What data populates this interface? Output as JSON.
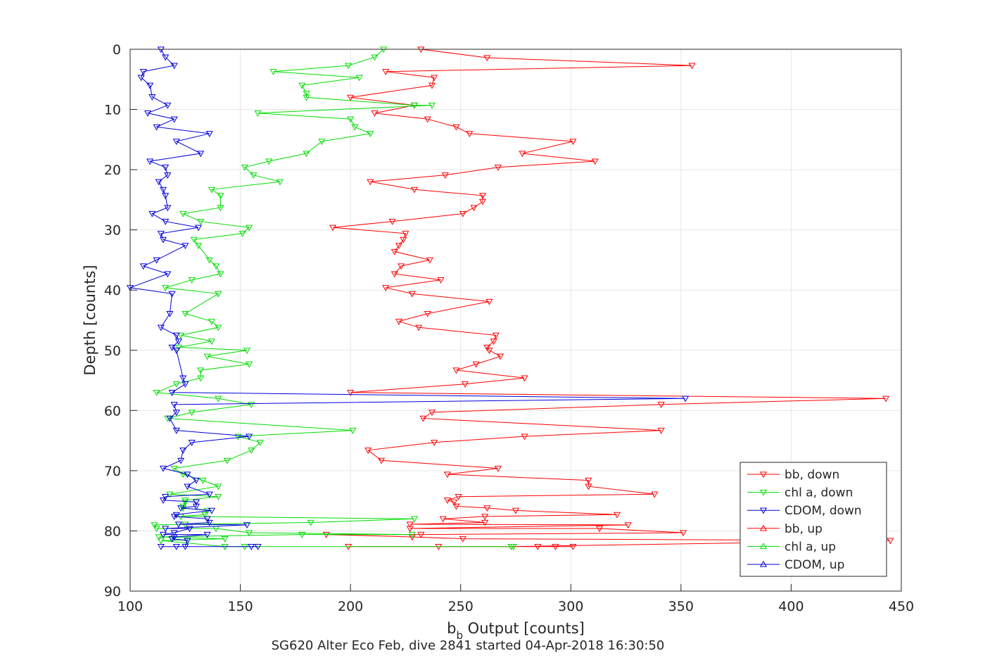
{
  "chart_data": {
    "type": "line",
    "title": "",
    "xlabel_main": "b",
    "xlabel_sub": "b",
    "xlabel_rest": " Output [counts]",
    "ylabel": "Depth [counts]",
    "caption": "SG620 Alter Eco Feb, dive 2841 started 04-Apr-2018 16:30:50",
    "xlim": [
      100,
      450
    ],
    "ylim": [
      0,
      90
    ],
    "y_reversed": true,
    "grid": true,
    "legend_position": "bottom-right",
    "xticks": [
      "100",
      "150",
      "200",
      "250",
      "300",
      "350",
      "400",
      "450"
    ],
    "yticks": [
      "0",
      "10",
      "20",
      "30",
      "40",
      "50",
      "60",
      "70",
      "80",
      "90"
    ],
    "series": [
      {
        "name": "bb, down",
        "color": "#ff0000",
        "marker": "down",
        "points": [
          [
            232,
            0
          ],
          [
            262,
            1.4
          ],
          [
            355,
            2.7
          ],
          [
            216,
            3.7
          ],
          [
            238,
            4.7
          ],
          [
            237,
            6
          ],
          [
            200,
            8
          ],
          [
            229,
            9.3
          ],
          [
            211,
            10.6
          ],
          [
            235,
            11.6
          ],
          [
            248,
            12.9
          ],
          [
            254,
            14
          ],
          [
            301,
            15.3
          ],
          [
            278,
            17.3
          ],
          [
            311,
            18.6
          ],
          [
            267,
            19.6
          ],
          [
            243,
            20.9
          ],
          [
            209,
            22
          ],
          [
            229,
            23.3
          ],
          [
            260,
            24.3
          ],
          [
            260,
            25.3
          ],
          [
            256,
            26.3
          ],
          [
            251,
            27.3
          ],
          [
            219,
            28.6
          ],
          [
            192,
            29.6
          ],
          [
            225,
            30.6
          ],
          [
            224,
            31.6
          ],
          [
            222,
            32.6
          ],
          [
            220,
            33.6
          ],
          [
            236,
            35
          ],
          [
            223,
            36
          ],
          [
            220,
            37.3
          ],
          [
            241,
            38.3
          ],
          [
            216,
            39.6
          ],
          [
            228,
            40.6
          ],
          [
            263,
            41.9
          ],
          [
            235,
            43.9
          ],
          [
            222,
            45.2
          ],
          [
            231,
            46.2
          ],
          [
            266,
            47.5
          ],
          [
            265,
            48.5
          ],
          [
            262,
            49.5
          ],
          [
            263,
            50
          ],
          [
            268,
            51
          ],
          [
            257,
            52.3
          ],
          [
            248,
            53.3
          ],
          [
            279,
            54.6
          ],
          [
            252,
            55.6
          ],
          [
            200,
            57
          ],
          [
            443,
            58
          ],
          [
            341,
            59
          ],
          [
            237,
            60.3
          ],
          [
            233,
            61.3
          ],
          [
            341,
            63.3
          ],
          [
            279,
            64.3
          ],
          [
            238,
            65.3
          ],
          [
            208,
            66.6
          ],
          [
            214,
            68.3
          ],
          [
            267,
            69.6
          ],
          [
            244,
            70.6
          ],
          [
            308,
            71.6
          ],
          [
            308,
            72.6
          ],
          [
            338,
            73.9
          ],
          [
            249,
            74.3
          ],
          [
            244,
            74.9
          ],
          [
            247,
            75.2
          ],
          [
            248,
            75.9
          ],
          [
            262,
            76.2
          ],
          [
            275,
            76.6
          ],
          [
            321,
            77.3
          ],
          [
            261,
            77.6
          ],
          [
            242,
            78
          ],
          [
            261,
            78.6
          ],
          [
            227,
            78.9
          ],
          [
            326,
            79
          ],
          [
            227,
            79.6
          ],
          [
            313,
            79.6
          ],
          [
            351,
            80.3
          ],
          [
            232,
            80.6
          ],
          [
            189,
            80.6
          ],
          [
            228,
            81
          ],
          [
            251,
            81.3
          ],
          [
            445,
            81.6
          ],
          [
            273,
            82.6
          ],
          [
            199,
            82.6
          ],
          [
            240,
            82.6
          ],
          [
            285,
            82.6
          ],
          [
            301,
            82.6
          ],
          [
            293,
            82.6
          ]
        ]
      },
      {
        "name": "chl a, down",
        "color": "#00dd00",
        "marker": "down",
        "points": [
          [
            215,
            0
          ],
          [
            211,
            1.3
          ],
          [
            199,
            2.7
          ],
          [
            165,
            3.7
          ],
          [
            204,
            4.7
          ],
          [
            178,
            6
          ],
          [
            180,
            7.3
          ],
          [
            180,
            8
          ],
          [
            229,
            9.3
          ],
          [
            237,
            9.3
          ],
          [
            158,
            10.6
          ],
          [
            200,
            11.6
          ],
          [
            202,
            12.9
          ],
          [
            209,
            14
          ],
          [
            187,
            15.3
          ],
          [
            180,
            17.3
          ],
          [
            163,
            18.6
          ],
          [
            152,
            19.6
          ],
          [
            156,
            20.9
          ],
          [
            168,
            22
          ],
          [
            137,
            23.3
          ],
          [
            141,
            24.3
          ],
          [
            141,
            26.3
          ],
          [
            124,
            27.3
          ],
          [
            132,
            28.6
          ],
          [
            154,
            29.6
          ],
          [
            151,
            30.6
          ],
          [
            129,
            31.6
          ],
          [
            131,
            32.6
          ],
          [
            136,
            35
          ],
          [
            139,
            36
          ],
          [
            141,
            37.3
          ],
          [
            128,
            38.3
          ],
          [
            116,
            39.6
          ],
          [
            140,
            40.6
          ],
          [
            125,
            43.9
          ],
          [
            137,
            45.2
          ],
          [
            140,
            46.2
          ],
          [
            123,
            47.5
          ],
          [
            137,
            48.5
          ],
          [
            122,
            49.5
          ],
          [
            153,
            50
          ],
          [
            135,
            51
          ],
          [
            154,
            52.3
          ],
          [
            132,
            53.3
          ],
          [
            132,
            54.6
          ],
          [
            121,
            55.6
          ],
          [
            112,
            57
          ],
          [
            140,
            58
          ],
          [
            155,
            59
          ],
          [
            128,
            60.3
          ],
          [
            117,
            61.3
          ],
          [
            201,
            63.3
          ],
          [
            149,
            64.3
          ],
          [
            159,
            65.3
          ],
          [
            155,
            66.6
          ],
          [
            144,
            68.3
          ],
          [
            120,
            69.6
          ],
          [
            124,
            70.6
          ],
          [
            133,
            71.6
          ],
          [
            140,
            72.6
          ],
          [
            118,
            73.9
          ],
          [
            140,
            74.3
          ],
          [
            125,
            74.9
          ],
          [
            125,
            75.2
          ],
          [
            124,
            75.9
          ],
          [
            124,
            76.2
          ],
          [
            135,
            76.6
          ],
          [
            134,
            77.3
          ],
          [
            123,
            77.6
          ],
          [
            229,
            78
          ],
          [
            182,
            78.6
          ],
          [
            125,
            78.9
          ],
          [
            111,
            79
          ],
          [
            112,
            79.6
          ],
          [
            139,
            79.6
          ],
          [
            154,
            80.3
          ],
          [
            228,
            80.6
          ],
          [
            178,
            80.6
          ],
          [
            113,
            81
          ],
          [
            143,
            81.3
          ],
          [
            114,
            81.6
          ],
          [
            143,
            82.6
          ],
          [
            152,
            82.6
          ],
          [
            143,
            82.6
          ],
          [
            273,
            82.6
          ],
          [
            274,
            82.6
          ]
        ]
      },
      {
        "name": "CDOM, down",
        "color": "#0000dd",
        "marker": "down",
        "points": [
          [
            114,
            0
          ],
          [
            116,
            1.3
          ],
          [
            120,
            2.7
          ],
          [
            106,
            3.7
          ],
          [
            105,
            4.7
          ],
          [
            109,
            6
          ],
          [
            110,
            7.9
          ],
          [
            117,
            9.3
          ],
          [
            108,
            10.6
          ],
          [
            120,
            11.6
          ],
          [
            112,
            12.9
          ],
          [
            136,
            14
          ],
          [
            121,
            15.3
          ],
          [
            132,
            17.3
          ],
          [
            109,
            18.6
          ],
          [
            116,
            19.6
          ],
          [
            117,
            20.9
          ],
          [
            113,
            22
          ],
          [
            115,
            23.3
          ],
          [
            116,
            24.3
          ],
          [
            117,
            26.3
          ],
          [
            110,
            27.3
          ],
          [
            116,
            28.6
          ],
          [
            131,
            29.6
          ],
          [
            114,
            30.6
          ],
          [
            115,
            31.6
          ],
          [
            125,
            32.6
          ],
          [
            112,
            35
          ],
          [
            106,
            36
          ],
          [
            117,
            37.3
          ],
          [
            100,
            39.6
          ],
          [
            119,
            40.6
          ],
          [
            118,
            43.9
          ],
          [
            114,
            46.2
          ],
          [
            121,
            47.5
          ],
          [
            122,
            48.5
          ],
          [
            119,
            49.5
          ],
          [
            121,
            50
          ],
          [
            124,
            54.6
          ],
          [
            125,
            55.6
          ],
          [
            119,
            57
          ],
          [
            352,
            58
          ],
          [
            120,
            59
          ],
          [
            121,
            60.3
          ],
          [
            118,
            61.3
          ],
          [
            121,
            63.3
          ],
          [
            154,
            64.3
          ],
          [
            128,
            65.3
          ],
          [
            124,
            66.6
          ],
          [
            123,
            68.3
          ],
          [
            115,
            69.6
          ],
          [
            126,
            70.6
          ],
          [
            130,
            71.6
          ],
          [
            126,
            72.6
          ],
          [
            136,
            73.9
          ],
          [
            116,
            74.3
          ],
          [
            115,
            74.9
          ],
          [
            130,
            75.2
          ],
          [
            130,
            75.9
          ],
          [
            123,
            76.2
          ],
          [
            137,
            76.6
          ],
          [
            121,
            77.3
          ],
          [
            120,
            77.6
          ],
          [
            135,
            78
          ],
          [
            136,
            78.6
          ],
          [
            122,
            78.9
          ],
          [
            153,
            79
          ],
          [
            116,
            79.6
          ],
          [
            127,
            79.6
          ],
          [
            120,
            80.3
          ],
          [
            115,
            80.6
          ],
          [
            135,
            80.6
          ],
          [
            120,
            81
          ],
          [
            119,
            81.3
          ],
          [
            126,
            81.6
          ],
          [
            125,
            82.6
          ],
          [
            121,
            82.6
          ],
          [
            158,
            82.6
          ],
          [
            114,
            82.6
          ],
          [
            155,
            82.6
          ]
        ]
      },
      {
        "name": "bb, up",
        "color": "#ff0000",
        "marker": "up",
        "points": []
      },
      {
        "name": "chl a, up",
        "color": "#00dd00",
        "marker": "up",
        "points": []
      },
      {
        "name": "CDOM, up",
        "color": "#0000dd",
        "marker": "up",
        "points": []
      }
    ]
  }
}
